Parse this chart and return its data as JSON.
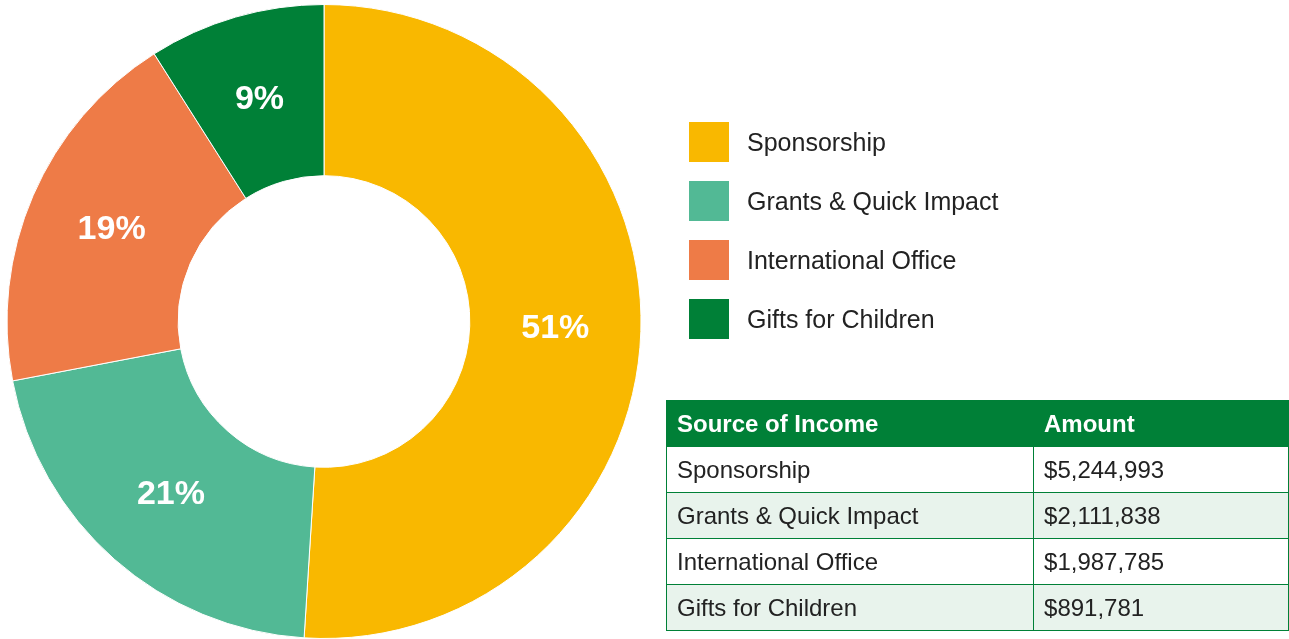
{
  "chart_data": [
    {
      "type": "donut",
      "categories": [
        "Sponsorship",
        "Grants & Quick Impact",
        "International Office",
        "Gifts for Children"
      ],
      "values": [
        51,
        21,
        19,
        9
      ],
      "colors": [
        "#f9b800",
        "#52b995",
        "#ee7b47",
        "#008037"
      ],
      "value_labels": [
        "51%",
        "21%",
        "19%",
        "9%"
      ],
      "legend": "right"
    },
    {
      "type": "other",
      "annotations": [
        "Source of Income",
        "Amount"
      ],
      "categories": [
        "Sponsorship",
        "Grants & Quick Impact",
        "International Office",
        "Gifts for Children"
      ],
      "value_labels": [
        "$5,244,993",
        "$2,111,838",
        "$1,987,785",
        "$891,781"
      ]
    }
  ]
}
